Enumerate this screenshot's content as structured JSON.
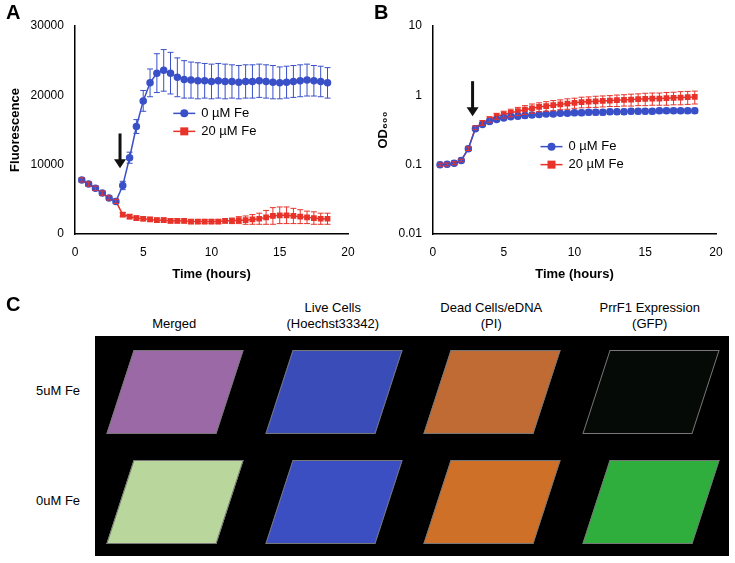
{
  "chart_data": [
    {
      "panel": "A",
      "type": "line",
      "x_label": "Time (hours)",
      "y_label": "Fluorescence",
      "xlim": [
        0,
        20
      ],
      "xticks": [
        0,
        5,
        10,
        15,
        20
      ],
      "ylim": [
        0,
        30000
      ],
      "yticks": [
        0,
        10000,
        20000,
        30000
      ],
      "grid": false,
      "legend": "center",
      "x": [
        0.5,
        1,
        1.5,
        2,
        2.5,
        3,
        3.5,
        4,
        4.5,
        5,
        5.5,
        6,
        6.5,
        7,
        7.5,
        8,
        8.5,
        9,
        9.5,
        10,
        10.5,
        11,
        11.5,
        12,
        12.5,
        13,
        13.5,
        14,
        14.5,
        15,
        15.5,
        16,
        16.5,
        17,
        17.5,
        18,
        18.5
      ],
      "series": [
        {
          "name": "0 µM Fe",
          "color": "#3a50c8",
          "marker": "circle",
          "values": [
            7800,
            7200,
            6600,
            5900,
            5200,
            4700,
            7000,
            11000,
            15500,
            19200,
            21800,
            23200,
            23600,
            23200,
            22600,
            22300,
            22200,
            22100,
            22100,
            22000,
            22100,
            22000,
            22000,
            21900,
            22000,
            22000,
            22100,
            22000,
            21900,
            21800,
            21900,
            22000,
            22100,
            22200,
            22100,
            22000,
            21800
          ],
          "errors": [
            300,
            300,
            300,
            300,
            300,
            300,
            600,
            800,
            1000,
            1500,
            2000,
            2800,
            3000,
            3000,
            2800,
            2700,
            2600,
            2600,
            2500,
            2500,
            2500,
            2500,
            2400,
            2400,
            2400,
            2400,
            2400,
            2400,
            2400,
            2300,
            2300,
            2300,
            2300,
            2300,
            2200,
            2200,
            2200
          ]
        },
        {
          "name": "20 µM Fe",
          "color": "#e8332a",
          "marker": "square",
          "values": [
            7800,
            7200,
            6600,
            5900,
            5200,
            4700,
            2800,
            2500,
            2300,
            2200,
            2100,
            2000,
            2000,
            1900,
            1900,
            1900,
            1800,
            1800,
            1800,
            1800,
            1800,
            1900,
            1900,
            2000,
            2000,
            2100,
            2200,
            2400,
            2600,
            2700,
            2700,
            2600,
            2500,
            2400,
            2300,
            2200,
            2200
          ],
          "errors": [
            300,
            300,
            300,
            300,
            300,
            300,
            300,
            300,
            300,
            300,
            300,
            300,
            300,
            300,
            300,
            300,
            300,
            300,
            300,
            300,
            300,
            300,
            400,
            500,
            600,
            700,
            800,
            1000,
            1200,
            1200,
            1200,
            1100,
            1000,
            900,
            900,
            800,
            800
          ]
        }
      ],
      "annotations": [
        {
          "type": "arrow",
          "x": 3.3,
          "y_from": 14500,
          "y_to": 9500
        }
      ]
    },
    {
      "panel": "B",
      "type": "line",
      "x_label": "Time (hours)",
      "y_label": "OD₆₀₀",
      "xlim": [
        0,
        20
      ],
      "xticks": [
        0,
        5,
        10,
        15,
        20
      ],
      "ylim": [
        0.01,
        10
      ],
      "yticks": [
        0.01,
        0.1,
        1,
        10
      ],
      "log": "y",
      "grid": false,
      "legend": "center",
      "x": [
        0.5,
        1,
        1.5,
        2,
        2.5,
        3,
        3.5,
        4,
        4.5,
        5,
        5.5,
        6,
        6.5,
        7,
        7.5,
        8,
        8.5,
        9,
        9.5,
        10,
        10.5,
        11,
        11.5,
        12,
        12.5,
        13,
        13.5,
        14,
        14.5,
        15,
        15.5,
        16,
        16.5,
        17,
        17.5,
        18,
        18.5
      ],
      "series": [
        {
          "name": "0 µM Fe",
          "color": "#3a50c8",
          "marker": "circle",
          "values": [
            0.1,
            0.101,
            0.105,
            0.115,
            0.17,
            0.33,
            0.38,
            0.42,
            0.45,
            0.47,
            0.49,
            0.5,
            0.51,
            0.52,
            0.53,
            0.54,
            0.54,
            0.55,
            0.55,
            0.56,
            0.56,
            0.57,
            0.57,
            0.57,
            0.58,
            0.58,
            0.58,
            0.59,
            0.59,
            0.59,
            0.59,
            0.6,
            0.6,
            0.6,
            0.6,
            0.6,
            0.6
          ],
          "errors": [
            0.005,
            0.005,
            0.005,
            0.005,
            0.01,
            0.02,
            0.02,
            0.03,
            0.03,
            0.03,
            0.03,
            0.04,
            0.04,
            0.04,
            0.04,
            0.04,
            0.04,
            0.04,
            0.04,
            0.05,
            0.05,
            0.05,
            0.05,
            0.05,
            0.05,
            0.05,
            0.05,
            0.05,
            0.05,
            0.05,
            0.05,
            0.05,
            0.05,
            0.05,
            0.05,
            0.05,
            0.05
          ]
        },
        {
          "name": "20 µM Fe",
          "color": "#e8332a",
          "marker": "square",
          "values": [
            0.1,
            0.101,
            0.105,
            0.115,
            0.17,
            0.34,
            0.4,
            0.45,
            0.5,
            0.53,
            0.56,
            0.59,
            0.62,
            0.65,
            0.68,
            0.7,
            0.72,
            0.74,
            0.76,
            0.78,
            0.8,
            0.81,
            0.82,
            0.83,
            0.84,
            0.85,
            0.86,
            0.87,
            0.88,
            0.89,
            0.9,
            0.9,
            0.91,
            0.92,
            0.93,
            0.94,
            0.95
          ],
          "errors": [
            0.005,
            0.005,
            0.005,
            0.005,
            0.01,
            0.02,
            0.03,
            0.04,
            0.05,
            0.06,
            0.07,
            0.08,
            0.09,
            0.1,
            0.1,
            0.11,
            0.12,
            0.12,
            0.13,
            0.13,
            0.14,
            0.14,
            0.15,
            0.15,
            0.15,
            0.16,
            0.16,
            0.17,
            0.17,
            0.18,
            0.18,
            0.18,
            0.19,
            0.19,
            0.2,
            0.2,
            0.2
          ]
        }
      ],
      "annotations": [
        {
          "type": "arrow",
          "x": 2.8,
          "y_from": 1.6,
          "y_to": 0.5
        }
      ]
    }
  ],
  "panel_c": {
    "panel": "C",
    "columns": [
      "Merged",
      "Live Cells (Hoechst33342)",
      "Dead Cells/eDNA (PI)",
      "PrrF1 Expression (GFP)"
    ],
    "rows": [
      {
        "label": "5uM Fe",
        "colors": [
          "#9b6aa6",
          "#3a4cb8",
          "#c06a34",
          "#060a06"
        ]
      },
      {
        "label": "0uM Fe",
        "colors": [
          "#b9d79c",
          "#3b4ec2",
          "#cf7029",
          "#2fae3e"
        ]
      }
    ]
  }
}
